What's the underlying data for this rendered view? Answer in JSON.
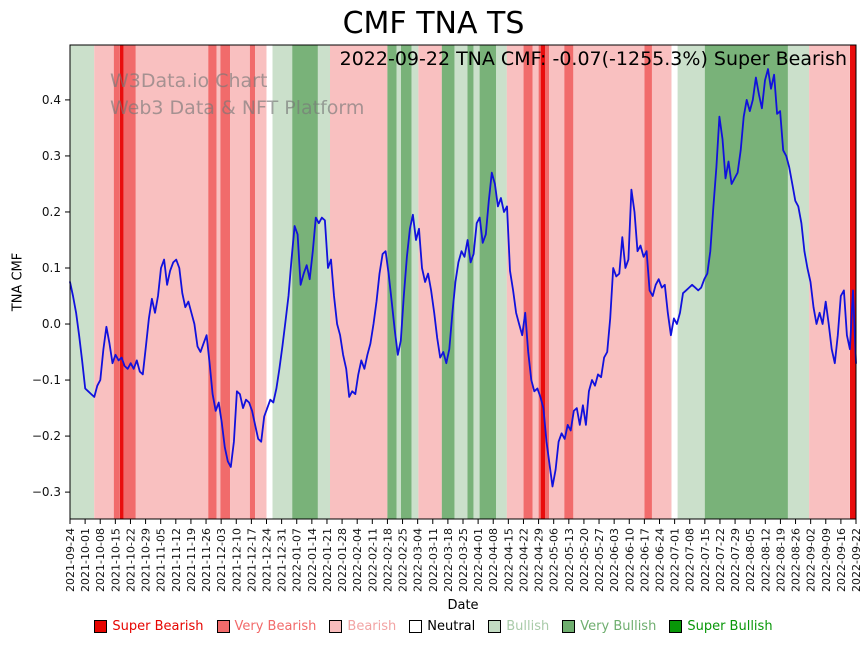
{
  "figure": {
    "annotation": "2022-09-22 TNA CMF: -0.07(-1255.3%) Super Bearish",
    "watermark_line1": "W3Data.io Chart",
    "watermark_line2": "Web3 Data & NFT Platform"
  },
  "chart_data": {
    "type": "line",
    "title": "CMF TNA TS",
    "xlabel": "Date",
    "ylabel": "TNA CMF",
    "ylim": [
      -0.348,
      0.498
    ],
    "yticks": [
      -0.3,
      -0.2,
      -0.1,
      0.0,
      0.1,
      0.2,
      0.3,
      0.4
    ],
    "line_color": "#1111dd",
    "grid": false,
    "legend_position": "bottom",
    "x_tick_labels": [
      "2021-09-24",
      "2021-10-01",
      "2021-10-08",
      "2021-10-15",
      "2021-10-22",
      "2021-10-29",
      "2021-11-05",
      "2021-11-12",
      "2021-11-19",
      "2021-11-26",
      "2021-12-03",
      "2021-12-10",
      "2021-12-17",
      "2021-12-24",
      "2021-12-31",
      "2022-01-07",
      "2022-01-14",
      "2022-01-21",
      "2022-01-28",
      "2022-02-04",
      "2022-02-11",
      "2022-02-18",
      "2022-02-25",
      "2022-03-04",
      "2022-03-11",
      "2022-03-18",
      "2022-03-25",
      "2022-04-01",
      "2022-04-08",
      "2022-04-15",
      "2022-04-22",
      "2022-04-29",
      "2022-05-06",
      "2022-05-13",
      "2022-05-20",
      "2022-05-27",
      "2022-06-03",
      "2022-06-10",
      "2022-06-17",
      "2022-06-24",
      "2022-07-01",
      "2022-07-08",
      "2022-07-15",
      "2022-07-22",
      "2022-07-29",
      "2022-08-05",
      "2022-08-12",
      "2022-08-19",
      "2022-08-26",
      "2022-09-02",
      "2022-09-09",
      "2022-09-16",
      "2022-09-22"
    ],
    "values": [
      0.075,
      0.05,
      0.02,
      -0.02,
      -0.065,
      -0.115,
      -0.12,
      -0.125,
      -0.13,
      -0.11,
      -0.1,
      -0.045,
      -0.005,
      -0.035,
      -0.07,
      -0.055,
      -0.065,
      -0.06,
      -0.075,
      -0.08,
      -0.07,
      -0.08,
      -0.065,
      -0.085,
      -0.09,
      -0.04,
      0.01,
      0.045,
      0.02,
      0.05,
      0.1,
      0.115,
      0.07,
      0.095,
      0.11,
      0.115,
      0.1,
      0.055,
      0.03,
      0.04,
      0.02,
      0.0,
      -0.04,
      -0.05,
      -0.035,
      -0.02,
      -0.07,
      -0.125,
      -0.155,
      -0.14,
      -0.175,
      -0.22,
      -0.245,
      -0.255,
      -0.21,
      -0.12,
      -0.125,
      -0.15,
      -0.135,
      -0.14,
      -0.155,
      -0.18,
      -0.205,
      -0.21,
      -0.165,
      -0.15,
      -0.135,
      -0.14,
      -0.115,
      -0.08,
      -0.04,
      0.005,
      0.05,
      0.115,
      0.175,
      0.16,
      0.07,
      0.09,
      0.105,
      0.08,
      0.13,
      0.19,
      0.18,
      0.19,
      0.185,
      0.1,
      0.115,
      0.05,
      0.0,
      -0.02,
      -0.055,
      -0.08,
      -0.13,
      -0.12,
      -0.125,
      -0.09,
      -0.065,
      -0.08,
      -0.055,
      -0.035,
      0.0,
      0.04,
      0.09,
      0.125,
      0.13,
      0.09,
      0.04,
      -0.01,
      -0.055,
      -0.03,
      0.05,
      0.12,
      0.17,
      0.195,
      0.15,
      0.17,
      0.1,
      0.075,
      0.09,
      0.06,
      0.02,
      -0.025,
      -0.06,
      -0.05,
      -0.07,
      -0.045,
      0.02,
      0.075,
      0.11,
      0.13,
      0.12,
      0.15,
      0.11,
      0.125,
      0.18,
      0.19,
      0.145,
      0.16,
      0.22,
      0.27,
      0.25,
      0.21,
      0.225,
      0.2,
      0.21,
      0.095,
      0.06,
      0.02,
      0.0,
      -0.02,
      0.02,
      -0.05,
      -0.1,
      -0.12,
      -0.115,
      -0.13,
      -0.15,
      -0.21,
      -0.25,
      -0.29,
      -0.26,
      -0.21,
      -0.195,
      -0.205,
      -0.18,
      -0.19,
      -0.155,
      -0.15,
      -0.18,
      -0.145,
      -0.18,
      -0.12,
      -0.1,
      -0.11,
      -0.09,
      -0.095,
      -0.06,
      -0.05,
      0.01,
      0.1,
      0.085,
      0.09,
      0.155,
      0.1,
      0.115,
      0.24,
      0.2,
      0.13,
      0.14,
      0.12,
      0.13,
      0.06,
      0.05,
      0.07,
      0.08,
      0.065,
      0.07,
      0.02,
      -0.02,
      0.01,
      0.0,
      0.02,
      0.055,
      0.06,
      0.065,
      0.07,
      0.065,
      0.06,
      0.065,
      0.08,
      0.09,
      0.13,
      0.21,
      0.28,
      0.37,
      0.33,
      0.26,
      0.29,
      0.25,
      0.26,
      0.27,
      0.31,
      0.37,
      0.4,
      0.38,
      0.4,
      0.44,
      0.41,
      0.385,
      0.435,
      0.455,
      0.42,
      0.445,
      0.375,
      0.38,
      0.31,
      0.3,
      0.28,
      0.25,
      0.22,
      0.21,
      0.18,
      0.13,
      0.1,
      0.075,
      0.03,
      0.0,
      0.02,
      0.0,
      0.04,
      0.0,
      -0.045,
      -0.07,
      -0.02,
      0.05,
      0.06,
      -0.02,
      -0.045,
      0.06,
      -0.07
    ],
    "band_week_span": 52,
    "band_colors": {
      "super_bearish": "#e90d0d",
      "very_bearish": "#f16b6b",
      "bearish": "#f9c0c0",
      "neutral": "#ffffff",
      "bullish": "#cbe0cb",
      "very_bullish": "#79b279",
      "super_bullish": "#0a930a"
    },
    "bands": [
      [
        0,
        1.6,
        "bullish"
      ],
      [
        1.6,
        2.9,
        "bearish"
      ],
      [
        2.9,
        3.3,
        "very_bearish"
      ],
      [
        3.3,
        3.55,
        "super_bearish"
      ],
      [
        3.55,
        4.35,
        "very_bearish"
      ],
      [
        4.35,
        9.15,
        "bearish"
      ],
      [
        9.15,
        9.7,
        "very_bearish"
      ],
      [
        9.7,
        9.95,
        "bearish"
      ],
      [
        9.95,
        10.6,
        "very_bearish"
      ],
      [
        10.6,
        11.9,
        "bearish"
      ],
      [
        11.9,
        12.25,
        "very_bearish"
      ],
      [
        12.25,
        13.0,
        "bearish"
      ],
      [
        13.0,
        13.4,
        "neutral"
      ],
      [
        13.4,
        14.7,
        "bullish"
      ],
      [
        14.7,
        16.4,
        "very_bullish"
      ],
      [
        16.4,
        17.2,
        "bullish"
      ],
      [
        17.2,
        21.0,
        "bearish"
      ],
      [
        21.0,
        21.6,
        "very_bullish"
      ],
      [
        21.6,
        21.9,
        "bullish"
      ],
      [
        21.9,
        22.6,
        "very_bullish"
      ],
      [
        22.6,
        23.05,
        "bullish"
      ],
      [
        23.05,
        24.6,
        "bearish"
      ],
      [
        24.6,
        25.45,
        "very_bullish"
      ],
      [
        25.45,
        26.3,
        "bullish"
      ],
      [
        26.3,
        26.7,
        "very_bullish"
      ],
      [
        26.7,
        27.1,
        "bullish"
      ],
      [
        27.1,
        28.2,
        "very_bullish"
      ],
      [
        28.2,
        28.9,
        "bullish"
      ],
      [
        28.9,
        30.0,
        "bearish"
      ],
      [
        30.0,
        30.6,
        "very_bearish"
      ],
      [
        30.6,
        31.0,
        "bearish"
      ],
      [
        31.0,
        31.15,
        "very_bearish"
      ],
      [
        31.15,
        31.45,
        "super_bearish"
      ],
      [
        31.45,
        31.7,
        "very_bearish"
      ],
      [
        31.7,
        32.7,
        "bearish"
      ],
      [
        32.7,
        33.3,
        "very_bearish"
      ],
      [
        33.3,
        38.0,
        "bearish"
      ],
      [
        38.0,
        38.5,
        "very_bearish"
      ],
      [
        38.5,
        39.8,
        "bearish"
      ],
      [
        39.8,
        40.2,
        "neutral"
      ],
      [
        40.2,
        42.0,
        "bullish"
      ],
      [
        42.0,
        47.5,
        "very_bullish"
      ],
      [
        47.5,
        48.9,
        "bullish"
      ],
      [
        48.9,
        51.6,
        "bearish"
      ],
      [
        51.6,
        52.0,
        "super_bearish"
      ]
    ],
    "legend": [
      {
        "label": "Super Bearish",
        "color": "#e60400",
        "text_color": "#e60400"
      },
      {
        "label": "Very Bearish",
        "color": "#f26a6a",
        "text_color": "#f26a6a"
      },
      {
        "label": "Bearish",
        "color": "#f9bdbd",
        "text_color": "#f2a3a3"
      },
      {
        "label": "Neutral",
        "color": "#ffffff",
        "text_color": "#000000"
      },
      {
        "label": "Bullish",
        "color": "#c3dcc3",
        "text_color": "#a9cba9"
      },
      {
        "label": "Very Bullish",
        "color": "#6fae6f",
        "text_color": "#6fae6f"
      },
      {
        "label": "Super Bullish",
        "color": "#089708",
        "text_color": "#089708"
      }
    ]
  }
}
